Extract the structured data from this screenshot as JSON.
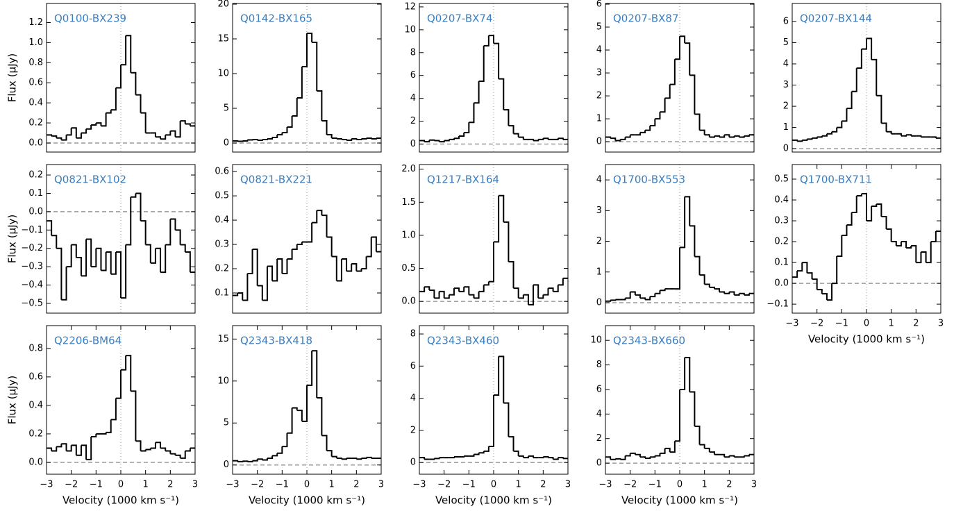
{
  "chart_data": [
    {
      "type": "step",
      "title": "Q0100-BX239",
      "ylabel": "Flux (μJy)",
      "color": "#000000",
      "xlim": [
        -3,
        3
      ],
      "ylim": [
        -0.09,
        1.39
      ],
      "yticks": [
        {
          "value": 0,
          "label": "0.0"
        },
        0.2,
        0.4,
        0.6,
        0.8,
        {
          "value": 1,
          "label": "1.0"
        },
        1.2
      ],
      "x": [
        -2.9,
        -2.7,
        -2.5,
        -2.3,
        -2.1,
        -1.9,
        -1.7,
        -1.5,
        -1.3,
        -1.1,
        -0.9,
        -0.7,
        -0.5,
        -0.3,
        -0.1,
        0.1,
        0.3,
        0.5,
        0.7,
        0.9,
        1.1,
        1.3,
        1.5,
        1.7,
        1.9,
        2.1,
        2.3,
        2.5,
        2.7,
        2.9
      ],
      "values": [
        0.08,
        0.07,
        0.05,
        0.03,
        0.08,
        0.15,
        0.05,
        0.1,
        0.14,
        0.18,
        0.2,
        0.17,
        0.3,
        0.33,
        0.55,
        0.78,
        1.07,
        0.7,
        0.48,
        0.3,
        0.1,
        0.1,
        0.06,
        0.04,
        0.08,
        0.12,
        0.06,
        0.22,
        0.19,
        0.17
      ]
    },
    {
      "type": "step",
      "title": "Q0142-BX165",
      "color": "#000000",
      "xlim": [
        -3,
        3
      ],
      "ylim": [
        -1.3,
        20.1
      ],
      "yticks": [
        0,
        5,
        10,
        15,
        20
      ],
      "x": [
        -2.9,
        -2.7,
        -2.5,
        -2.3,
        -2.1,
        -1.9,
        -1.7,
        -1.5,
        -1.3,
        -1.1,
        -0.9,
        -0.7,
        -0.5,
        -0.3,
        -0.1,
        0.1,
        0.3,
        0.5,
        0.7,
        0.9,
        1.1,
        1.3,
        1.5,
        1.7,
        1.9,
        2.1,
        2.3,
        2.5,
        2.7,
        2.9
      ],
      "values": [
        0.3,
        0.25,
        0.3,
        0.45,
        0.5,
        0.4,
        0.5,
        0.6,
        0.8,
        1.2,
        1.5,
        2.3,
        3.9,
        6.5,
        11,
        15.8,
        14.5,
        7.5,
        3.2,
        1.2,
        0.7,
        0.6,
        0.5,
        0.4,
        0.6,
        0.5,
        0.6,
        0.7,
        0.6,
        0.7
      ]
    },
    {
      "type": "step",
      "title": "Q0207-BX74",
      "color": "#000000",
      "xlim": [
        -3,
        3
      ],
      "ylim": [
        -0.7,
        12.3
      ],
      "yticks": [
        0,
        2,
        4,
        6,
        8,
        10,
        12
      ],
      "x": [
        -2.9,
        -2.7,
        -2.5,
        -2.3,
        -2.1,
        -1.9,
        -1.7,
        -1.5,
        -1.3,
        -1.1,
        -0.9,
        -0.7,
        -0.5,
        -0.3,
        -0.1,
        0.1,
        0.3,
        0.5,
        0.7,
        0.9,
        1.1,
        1.3,
        1.5,
        1.7,
        1.9,
        2.1,
        2.3,
        2.5,
        2.7,
        2.9
      ],
      "values": [
        0.3,
        0.2,
        0.35,
        0.3,
        0.2,
        0.3,
        0.4,
        0.5,
        0.7,
        1.0,
        1.9,
        3.6,
        5.5,
        8.6,
        9.5,
        8.8,
        5.7,
        3.0,
        1.6,
        0.9,
        0.6,
        0.4,
        0.4,
        0.3,
        0.4,
        0.5,
        0.4,
        0.4,
        0.5,
        0.4
      ]
    },
    {
      "type": "step",
      "title": "Q0207-BX87",
      "color": "#000000",
      "xlim": [
        -3,
        3
      ],
      "ylim": [
        -0.45,
        6.03
      ],
      "yticks": [
        0,
        1,
        2,
        3,
        4,
        5,
        6
      ],
      "x": [
        -2.9,
        -2.7,
        -2.5,
        -2.3,
        -2.1,
        -1.9,
        -1.7,
        -1.5,
        -1.3,
        -1.1,
        -0.9,
        -0.7,
        -0.5,
        -0.3,
        -0.1,
        0.1,
        0.3,
        0.5,
        0.7,
        0.9,
        1.1,
        1.3,
        1.5,
        1.7,
        1.9,
        2.1,
        2.3,
        2.5,
        2.7,
        2.9
      ],
      "values": [
        0.2,
        0.15,
        0.05,
        0.1,
        0.2,
        0.3,
        0.3,
        0.4,
        0.5,
        0.7,
        1.0,
        1.3,
        1.9,
        2.5,
        3.6,
        4.6,
        4.3,
        2.9,
        1.2,
        0.5,
        0.3,
        0.2,
        0.25,
        0.2,
        0.3,
        0.2,
        0.25,
        0.2,
        0.25,
        0.3
      ]
    },
    {
      "type": "step",
      "title": "Q0207-BX144",
      "color": "#000000",
      "xlim": [
        -3,
        3
      ],
      "ylim": [
        -0.16,
        6.85
      ],
      "yticks": [
        0,
        1,
        2,
        3,
        4,
        5,
        6
      ],
      "x": [
        -2.9,
        -2.7,
        -2.5,
        -2.3,
        -2.1,
        -1.9,
        -1.7,
        -1.5,
        -1.3,
        -1.1,
        -0.9,
        -0.7,
        -0.5,
        -0.3,
        -0.1,
        0.1,
        0.3,
        0.5,
        0.7,
        0.9,
        1.1,
        1.3,
        1.5,
        1.7,
        1.9,
        2.1,
        2.3,
        2.5,
        2.7,
        2.9
      ],
      "values": [
        0.4,
        0.35,
        0.4,
        0.45,
        0.5,
        0.55,
        0.6,
        0.7,
        0.8,
        1.0,
        1.3,
        1.9,
        2.7,
        3.8,
        4.7,
        5.2,
        4.2,
        2.5,
        1.2,
        0.8,
        0.7,
        0.7,
        0.6,
        0.65,
        0.6,
        0.6,
        0.55,
        0.55,
        0.55,
        0.5
      ]
    },
    {
      "type": "step",
      "title": "Q0821-BX102",
      "ylabel": "Flux (μJy)",
      "color": "#000000",
      "xlim": [
        -3,
        3
      ],
      "ylim": [
        -0.553,
        0.257
      ],
      "yticks": [
        {
          "value": -0.5,
          "label": "−0.5"
        },
        {
          "value": -0.4,
          "label": "−0.4"
        },
        {
          "value": -0.3,
          "label": "−0.3"
        },
        {
          "value": -0.2,
          "label": "−0.2"
        },
        {
          "value": -0.1,
          "label": "−0.1"
        },
        {
          "value": 0,
          "label": "0.0"
        },
        0.1,
        0.2
      ],
      "x": [
        -2.9,
        -2.7,
        -2.5,
        -2.3,
        -2.1,
        -1.9,
        -1.7,
        -1.5,
        -1.3,
        -1.1,
        -0.9,
        -0.7,
        -0.5,
        -0.3,
        -0.1,
        0.1,
        0.3,
        0.5,
        0.7,
        0.9,
        1.1,
        1.3,
        1.5,
        1.7,
        1.9,
        2.1,
        2.3,
        2.5,
        2.7,
        2.9
      ],
      "values": [
        -0.05,
        -0.13,
        -0.2,
        -0.48,
        -0.3,
        -0.18,
        -0.25,
        -0.35,
        -0.15,
        -0.3,
        -0.2,
        -0.32,
        -0.22,
        -0.34,
        -0.22,
        -0.47,
        -0.18,
        0.08,
        0.1,
        -0.05,
        -0.18,
        -0.28,
        -0.2,
        -0.33,
        -0.18,
        -0.04,
        -0.1,
        -0.18,
        -0.22,
        -0.33
      ]
    },
    {
      "type": "step",
      "title": "Q0821-BX221",
      "color": "#000000",
      "xlim": [
        -3,
        3
      ],
      "ylim": [
        0.017,
        0.629
      ],
      "yticks": [
        0.1,
        0.2,
        0.3,
        0.4,
        0.5,
        0.6
      ],
      "x": [
        -2.9,
        -2.7,
        -2.5,
        -2.3,
        -2.1,
        -1.9,
        -1.7,
        -1.5,
        -1.3,
        -1.1,
        -0.9,
        -0.7,
        -0.5,
        -0.3,
        -0.1,
        0.1,
        0.3,
        0.5,
        0.7,
        0.9,
        1.1,
        1.3,
        1.5,
        1.7,
        1.9,
        2.1,
        2.3,
        2.5,
        2.7,
        2.9
      ],
      "values": [
        0.09,
        0.1,
        0.07,
        0.18,
        0.28,
        0.13,
        0.07,
        0.21,
        0.15,
        0.24,
        0.18,
        0.24,
        0.28,
        0.3,
        0.31,
        0.31,
        0.39,
        0.44,
        0.42,
        0.33,
        0.25,
        0.15,
        0.24,
        0.19,
        0.22,
        0.19,
        0.2,
        0.25,
        0.33,
        0.27
      ]
    },
    {
      "type": "step",
      "title": "Q1217-BX164",
      "color": "#000000",
      "xlim": [
        -3,
        3
      ],
      "ylim": [
        -0.177,
        2.07
      ],
      "yticks": [
        {
          "value": 0,
          "label": "0.0"
        },
        0.5,
        {
          "value": 1,
          "label": "1.0"
        },
        1.5,
        {
          "value": 2,
          "label": "2.0"
        }
      ],
      "x": [
        -2.9,
        -2.7,
        -2.5,
        -2.3,
        -2.1,
        -1.9,
        -1.7,
        -1.5,
        -1.3,
        -1.1,
        -0.9,
        -0.7,
        -0.5,
        -0.3,
        -0.1,
        0.1,
        0.3,
        0.5,
        0.7,
        0.9,
        1.1,
        1.3,
        1.5,
        1.7,
        1.9,
        2.1,
        2.3,
        2.5,
        2.7,
        2.9
      ],
      "values": [
        0.15,
        0.22,
        0.17,
        0.05,
        0.15,
        0.05,
        0.1,
        0.2,
        0.15,
        0.22,
        0.1,
        0.05,
        0.15,
        0.25,
        0.3,
        0.9,
        1.6,
        1.2,
        0.6,
        0.2,
        0.05,
        0.1,
        -0.05,
        0.25,
        0.05,
        0.1,
        0.2,
        0.15,
        0.25,
        0.35
      ]
    },
    {
      "type": "step",
      "title": "Q1700-BX553",
      "color": "#000000",
      "xlim": [
        -3,
        3
      ],
      "ylim": [
        -0.34,
        4.5
      ],
      "yticks": [
        0,
        1,
        2,
        3,
        4
      ],
      "x": [
        -2.9,
        -2.7,
        -2.5,
        -2.3,
        -2.1,
        -1.9,
        -1.7,
        -1.5,
        -1.3,
        -1.1,
        -0.9,
        -0.7,
        -0.5,
        -0.3,
        -0.1,
        0.1,
        0.3,
        0.5,
        0.7,
        0.9,
        1.1,
        1.3,
        1.5,
        1.7,
        1.9,
        2.1,
        2.3,
        2.5,
        2.7,
        2.9
      ],
      "values": [
        0.05,
        0.08,
        0.1,
        0.1,
        0.15,
        0.35,
        0.25,
        0.15,
        0.1,
        0.2,
        0.3,
        0.4,
        0.45,
        0.45,
        0.45,
        1.8,
        3.45,
        2.5,
        1.5,
        0.9,
        0.6,
        0.5,
        0.45,
        0.35,
        0.3,
        0.35,
        0.25,
        0.3,
        0.25,
        0.3
      ]
    },
    {
      "type": "step",
      "title": "Q1700-BX711",
      "xlabel": "Velocity (1000 km s⁻¹)",
      "color": "#000000",
      "xlim": [
        -3,
        3
      ],
      "ylim": [
        -0.143,
        0.57
      ],
      "yticks": [
        {
          "value": -0.1,
          "label": "−0.1"
        },
        {
          "value": 0,
          "label": "0.0"
        },
        0.1,
        0.2,
        0.3,
        0.4,
        0.5
      ],
      "xticks": [
        {
          "value": -3,
          "label": "−3"
        },
        {
          "value": -2,
          "label": "−2"
        },
        {
          "value": -1,
          "label": "−1"
        },
        0,
        1,
        2,
        3
      ],
      "x": [
        -2.9,
        -2.7,
        -2.5,
        -2.3,
        -2.1,
        -1.9,
        -1.7,
        -1.5,
        -1.3,
        -1.1,
        -0.9,
        -0.7,
        -0.5,
        -0.3,
        -0.1,
        0.1,
        0.3,
        0.5,
        0.7,
        0.9,
        1.1,
        1.3,
        1.5,
        1.7,
        1.9,
        2.1,
        2.3,
        2.5,
        2.7,
        2.9
      ],
      "values": [
        0.03,
        0.06,
        0.1,
        0.05,
        0.02,
        -0.03,
        -0.05,
        -0.08,
        0.0,
        0.13,
        0.23,
        0.28,
        0.34,
        0.42,
        0.43,
        0.3,
        0.37,
        0.38,
        0.32,
        0.26,
        0.2,
        0.18,
        0.2,
        0.17,
        0.18,
        0.1,
        0.15,
        0.1,
        0.2,
        0.25
      ]
    },
    {
      "type": "step",
      "title": "Q2206-BM64",
      "ylabel": "Flux (μJy)",
      "xlabel": "Velocity (1000 km s⁻¹)",
      "color": "#000000",
      "xlim": [
        -3,
        3
      ],
      "ylim": [
        -0.083,
        0.96
      ],
      "yticks": [
        {
          "value": 0,
          "label": "0.0"
        },
        0.2,
        0.4,
        0.6,
        0.8
      ],
      "xticks": [
        {
          "value": -3,
          "label": "−3"
        },
        {
          "value": -2,
          "label": "−2"
        },
        {
          "value": -1,
          "label": "−1"
        },
        0,
        1,
        2,
        3
      ],
      "x": [
        -2.9,
        -2.7,
        -2.5,
        -2.3,
        -2.1,
        -1.9,
        -1.7,
        -1.5,
        -1.3,
        -1.1,
        -0.9,
        -0.7,
        -0.5,
        -0.3,
        -0.1,
        0.1,
        0.3,
        0.5,
        0.7,
        0.9,
        1.1,
        1.3,
        1.5,
        1.7,
        1.9,
        2.1,
        2.3,
        2.5,
        2.7,
        2.9
      ],
      "values": [
        0.1,
        0.08,
        0.11,
        0.13,
        0.08,
        0.12,
        0.05,
        0.12,
        0.02,
        0.18,
        0.2,
        0.2,
        0.21,
        0.3,
        0.45,
        0.65,
        0.75,
        0.5,
        0.15,
        0.08,
        0.09,
        0.1,
        0.14,
        0.1,
        0.08,
        0.06,
        0.05,
        0.03,
        0.08,
        0.1
      ]
    },
    {
      "type": "step",
      "title": "Q2343-BX418",
      "xlabel": "Velocity (1000 km s⁻¹)",
      "color": "#000000",
      "xlim": [
        -3,
        3
      ],
      "ylim": [
        -1.1,
        16.6
      ],
      "yticks": [
        0,
        5,
        10,
        15
      ],
      "xticks": [
        {
          "value": -3,
          "label": "−3"
        },
        {
          "value": -2,
          "label": "−2"
        },
        {
          "value": -1,
          "label": "−1"
        },
        0,
        1,
        2,
        3
      ],
      "x": [
        -2.9,
        -2.7,
        -2.5,
        -2.3,
        -2.1,
        -1.9,
        -1.7,
        -1.5,
        -1.3,
        -1.1,
        -0.9,
        -0.7,
        -0.5,
        -0.3,
        -0.1,
        0.1,
        0.3,
        0.5,
        0.7,
        0.9,
        1.1,
        1.3,
        1.5,
        1.7,
        1.9,
        2.1,
        2.3,
        2.5,
        2.7,
        2.9
      ],
      "values": [
        0.5,
        0.4,
        0.45,
        0.4,
        0.5,
        0.7,
        0.6,
        0.8,
        1.1,
        1.4,
        2.2,
        3.8,
        6.8,
        6.5,
        5.2,
        9.5,
        13.6,
        8.0,
        3.5,
        1.7,
        1.0,
        0.8,
        0.7,
        0.8,
        0.8,
        0.7,
        0.8,
        0.9,
        0.8,
        0.8
      ]
    },
    {
      "type": "step",
      "title": "Q2343-BX460",
      "xlabel": "Velocity (1000 km s⁻¹)",
      "color": "#000000",
      "xlim": [
        -3,
        3
      ],
      "ylim": [
        -0.73,
        8.52
      ],
      "yticks": [
        0,
        2,
        4,
        6,
        8
      ],
      "xticks": [
        {
          "value": -3,
          "label": "−3"
        },
        {
          "value": -2,
          "label": "−2"
        },
        {
          "value": -1,
          "label": "−1"
        },
        0,
        1,
        2,
        3
      ],
      "x": [
        -2.9,
        -2.7,
        -2.5,
        -2.3,
        -2.1,
        -1.9,
        -1.7,
        -1.5,
        -1.3,
        -1.1,
        -0.9,
        -0.7,
        -0.5,
        -0.3,
        -0.1,
        0.1,
        0.3,
        0.5,
        0.7,
        0.9,
        1.1,
        1.3,
        1.5,
        1.7,
        1.9,
        2.1,
        2.3,
        2.5,
        2.7,
        2.9
      ],
      "values": [
        0.3,
        0.2,
        0.2,
        0.25,
        0.3,
        0.3,
        0.3,
        0.35,
        0.35,
        0.4,
        0.4,
        0.5,
        0.6,
        0.7,
        1.0,
        4.2,
        6.6,
        3.7,
        1.6,
        0.7,
        0.4,
        0.3,
        0.4,
        0.3,
        0.3,
        0.35,
        0.3,
        0.2,
        0.3,
        0.25
      ]
    },
    {
      "type": "step",
      "title": "Q2343-BX660",
      "xlabel": "Velocity (1000 km s⁻¹)",
      "color": "#000000",
      "xlim": [
        -3,
        3
      ],
      "ylim": [
        -0.9,
        11.2
      ],
      "yticks": [
        0,
        2,
        4,
        6,
        8,
        10
      ],
      "xticks": [
        {
          "value": -3,
          "label": "−3"
        },
        {
          "value": -2,
          "label": "−2"
        },
        {
          "value": -1,
          "label": "−1"
        },
        0,
        1,
        2,
        3
      ],
      "x": [
        -2.9,
        -2.7,
        -2.5,
        -2.3,
        -2.1,
        -1.9,
        -1.7,
        -1.5,
        -1.3,
        -1.1,
        -0.9,
        -0.7,
        -0.5,
        -0.3,
        -0.1,
        0.1,
        0.3,
        0.5,
        0.7,
        0.9,
        1.1,
        1.3,
        1.5,
        1.7,
        1.9,
        2.1,
        2.3,
        2.5,
        2.7,
        2.9
      ],
      "values": [
        0.5,
        0.3,
        0.35,
        0.3,
        0.6,
        0.8,
        0.7,
        0.5,
        0.4,
        0.5,
        0.6,
        0.8,
        1.2,
        0.9,
        1.8,
        6.0,
        8.6,
        5.8,
        3.0,
        1.5,
        1.2,
        0.9,
        0.7,
        0.7,
        0.5,
        0.6,
        0.5,
        0.5,
        0.6,
        0.7
      ]
    }
  ]
}
